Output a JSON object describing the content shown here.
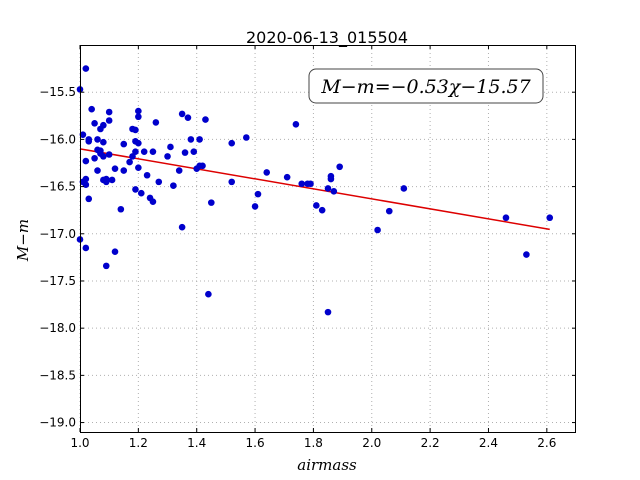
{
  "chart_data": {
    "type": "scatter",
    "title": "2020-06-13_015504",
    "xlabel": "airmass",
    "ylabel": "M−m",
    "xlim": [
      1.0,
      2.7
    ],
    "ylim": [
      -19.1,
      -15.0
    ],
    "y_inverted": false,
    "grid": true,
    "xticks": [
      "1.0",
      "1.2",
      "1.4",
      "1.6",
      "1.8",
      "2.0",
      "2.2",
      "2.4",
      "2.6"
    ],
    "yticks": [
      "−15.5",
      "−16.0",
      "−16.5",
      "−17.0",
      "−17.5",
      "−18.0",
      "−18.5",
      "−19.0"
    ],
    "annotation": "M−m=−0.53χ−15.57",
    "annotation_position": "top-right",
    "point_color": "#0000cc",
    "line_color": "#dd0000",
    "fit_line": {
      "slope": -0.53,
      "intercept": -15.57,
      "x": [
        1.0,
        2.61
      ]
    },
    "series": [
      {
        "x": [
          1.0,
          1.0,
          1.01,
          1.01,
          1.02,
          1.02,
          1.02,
          1.02,
          1.02,
          1.03,
          1.03,
          1.03,
          1.04,
          1.05,
          1.05,
          1.06,
          1.06,
          1.06,
          1.07,
          1.07,
          1.07,
          1.08,
          1.08,
          1.08,
          1.08,
          1.09,
          1.09,
          1.09,
          1.1,
          1.1,
          1.1,
          1.11,
          1.12,
          1.12,
          1.14,
          1.15,
          1.15,
          1.17,
          1.18,
          1.18,
          1.19,
          1.19,
          1.19,
          1.19,
          1.2,
          1.2,
          1.2,
          1.2,
          1.21,
          1.22,
          1.23,
          1.24,
          1.25,
          1.25,
          1.26,
          1.27,
          1.3,
          1.31,
          1.32,
          1.34,
          1.35,
          1.35,
          1.36,
          1.37,
          1.38,
          1.39,
          1.4,
          1.41,
          1.41,
          1.42,
          1.43,
          1.44,
          1.45,
          1.52,
          1.52,
          1.57,
          1.6,
          1.61,
          1.64,
          1.71,
          1.74,
          1.76,
          1.78,
          1.79,
          1.81,
          1.83,
          1.85,
          1.85,
          1.86,
          1.86,
          1.87,
          1.89,
          2.02,
          2.06,
          2.11,
          2.46,
          2.53,
          2.61
        ],
        "y": [
          -15.47,
          -17.06,
          -15.95,
          -16.45,
          -16.42,
          -15.25,
          -16.48,
          -17.15,
          -16.23,
          -16.63,
          -16.02,
          -16.0,
          -15.68,
          -16.2,
          -15.83,
          -16.11,
          -16.0,
          -16.33,
          -16.15,
          -16.12,
          -15.89,
          -16.18,
          -15.85,
          -16.43,
          -16.03,
          -17.34,
          -16.42,
          -16.45,
          -15.8,
          -15.71,
          -16.16,
          -16.43,
          -16.31,
          -17.19,
          -16.74,
          -16.05,
          -16.33,
          -16.24,
          -15.89,
          -16.18,
          -16.02,
          -16.13,
          -15.9,
          -16.53,
          -15.7,
          -16.3,
          -16.04,
          -15.76,
          -16.57,
          -16.13,
          -16.38,
          -16.62,
          -16.66,
          -16.13,
          -15.82,
          -16.45,
          -16.18,
          -16.08,
          -16.49,
          -16.33,
          -15.73,
          -16.93,
          -16.14,
          -15.77,
          -16.0,
          -16.13,
          -16.31,
          -16.0,
          -16.28,
          -16.28,
          -15.79,
          -17.64,
          -16.67,
          -16.04,
          -16.45,
          -15.98,
          -16.71,
          -16.58,
          -16.35,
          -16.4,
          -15.84,
          -16.47,
          -16.47,
          -16.47,
          -16.7,
          -16.75,
          -16.52,
          -17.83,
          -16.39,
          -16.42,
          -16.55,
          -16.29,
          -16.96,
          -16.76,
          -16.52,
          -16.83,
          -17.22,
          -16.83
        ]
      }
    ]
  }
}
